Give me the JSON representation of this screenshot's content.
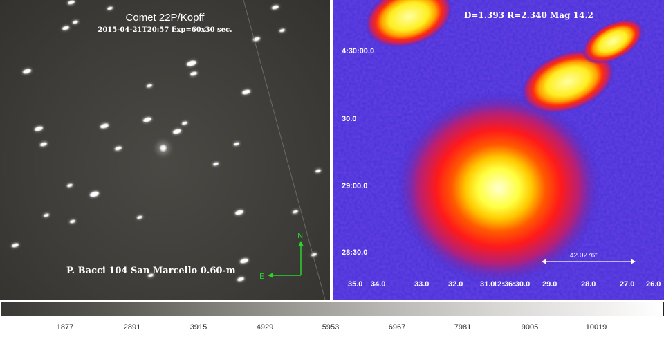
{
  "left_panel": {
    "title": "Comet 22P/Kopff",
    "subtitle": "2015-04-21T20:57 Exp=60x30 sec.",
    "observer": "P. Bacci 104 San Marcello 0.60-m",
    "compass": {
      "north": "N",
      "east": "E",
      "color": "#2bd42b"
    }
  },
  "right_panel": {
    "header": "D=1.393 R=2.340  Mag 14.2",
    "y_ticks": [
      "4:30:00.0",
      "30.0",
      "29:00.0",
      "28:30.0"
    ],
    "x_ticks": [
      "35.0",
      "34.0",
      "33.0",
      "32.0",
      "31.0",
      "12:36:30.0",
      "29.0",
      "28.0",
      "27.0",
      "26.0"
    ],
    "scale_label": "42.0276\"",
    "colormap": [
      "#3b2fd6",
      "#c81f62",
      "#ff2a10",
      "#ff8a00",
      "#ffe100",
      "#ffffc0"
    ]
  },
  "colorbar": {
    "ticks": [
      "1877",
      "2891",
      "3915",
      "4929",
      "5953",
      "6967",
      "7981",
      "9005",
      "10019"
    ]
  }
}
